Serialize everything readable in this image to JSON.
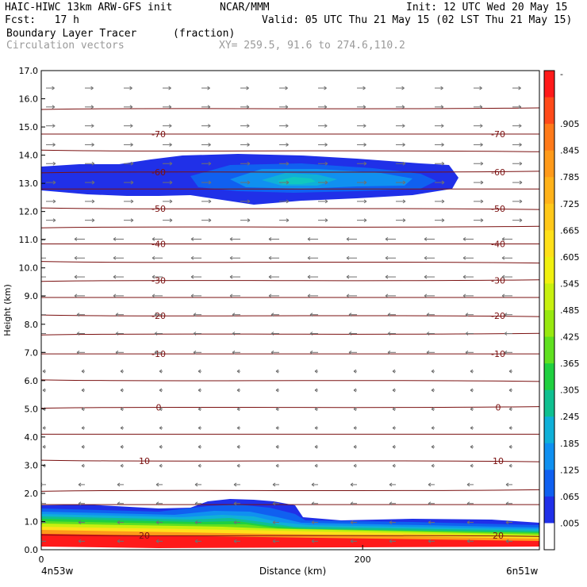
{
  "header": {
    "model": "HAIC-HIWC 13km ARW-GFS init",
    "org": "NCAR/MMM",
    "init": "Init: 12 UTC Wed 20 May 15",
    "fcst": "Fcst:   17 h",
    "valid": "Valid: 05 UTC Thu 21 May 15 (02 LST Thu 21 May 15)",
    "field": "Boundary Layer Tracer",
    "units": "(fraction)",
    "vectors": "Circulation vectors",
    "xy": "XY= 259.5, 91.6 to 274.6,110.2"
  },
  "chart_data": {
    "type": "heatmap",
    "title": "Boundary Layer Tracer",
    "ylabel": "Height (km)",
    "xlabel": "Distance (km)",
    "ylim": [
      0,
      17
    ],
    "xlim": [
      0,
      310
    ],
    "y_ticks": [
      "0.0",
      "1.0",
      "2.0",
      "3.0",
      "4.0",
      "5.0",
      "6.0",
      "7.0",
      "8.0",
      "9.0",
      "10.0",
      "11.0",
      "12.0",
      "13.0",
      "14.0",
      "15.0",
      "16.0",
      "17.0"
    ],
    "x_ticks": [
      {
        "value": 0,
        "label": "0"
      },
      {
        "value": 200,
        "label": "200"
      }
    ],
    "x_end_labels": {
      "left": "4n53w",
      "right": "6n51w"
    },
    "colorbar": {
      "labels": [
        "-",
        ".905",
        ".845",
        ".785",
        ".725",
        ".665",
        ".605",
        ".545",
        ".485",
        ".425",
        ".365",
        ".305",
        ".245",
        ".185",
        ".125",
        ".065",
        ".005"
      ],
      "colors": [
        "#ff1a1a",
        "#ff4a1a",
        "#ff7a1a",
        "#ff9a1a",
        "#ffb21a",
        "#ffc81a",
        "#ffe01a",
        "#f0f010",
        "#c8f010",
        "#98e810",
        "#60e020",
        "#20d040",
        "#10c090",
        "#10b0d8",
        "#1090f0",
        "#1060f0",
        "#2030e8",
        "#ffffff"
      ]
    },
    "temperature_contours": [
      {
        "z": 0.5,
        "label": "20"
      },
      {
        "z": 1.6
      },
      {
        "z": 2.1
      },
      {
        "z": 3.15,
        "label": "10"
      },
      {
        "z": 4.1
      },
      {
        "z": 5.05,
        "label": "0"
      },
      {
        "z": 6.0
      },
      {
        "z": 6.95,
        "label": "-10"
      },
      {
        "z": 7.65
      },
      {
        "z": 8.3,
        "label": "-20"
      },
      {
        "z": 8.95
      },
      {
        "z": 9.55,
        "label": "-30"
      },
      {
        "z": 10.2
      },
      {
        "z": 10.85,
        "label": "-40"
      },
      {
        "z": 11.45
      },
      {
        "z": 12.1,
        "label": "-50"
      },
      {
        "z": 12.8
      },
      {
        "z": 13.4,
        "label": "-60"
      },
      {
        "z": 14.15
      },
      {
        "z": 14.75,
        "label": "-70"
      },
      {
        "z": 15.65
      }
    ]
  }
}
